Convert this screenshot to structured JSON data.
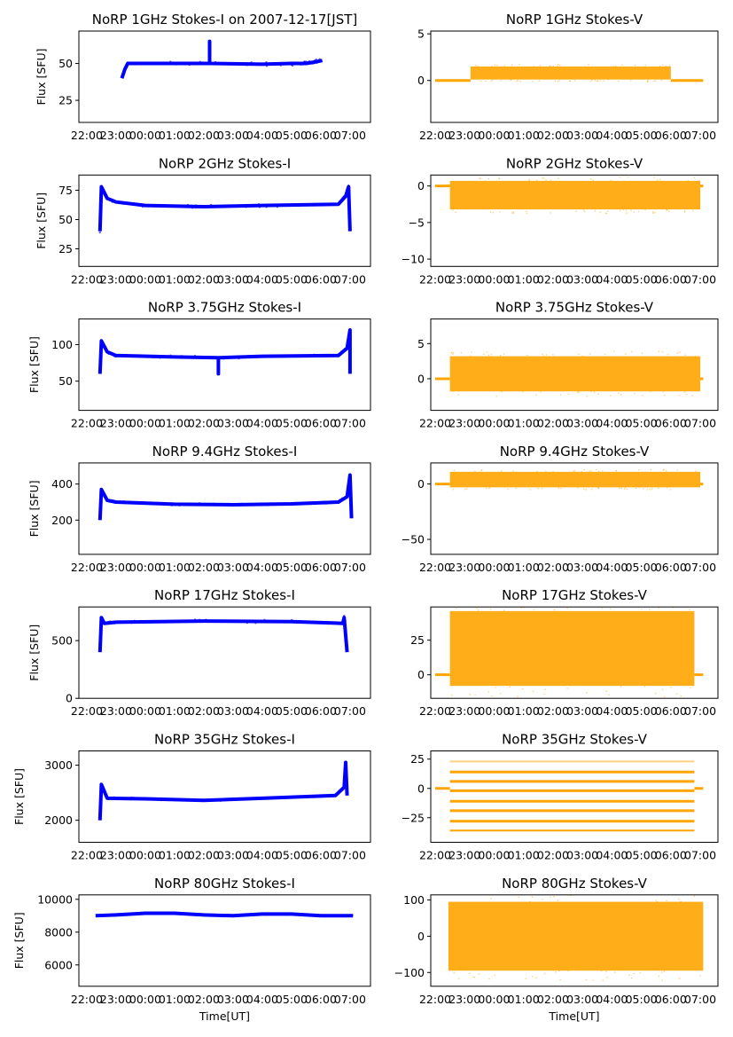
{
  "chart_data": {
    "type": "scatter",
    "x_unit": "hours since 22:00 UT",
    "xtick_values": [
      0,
      1,
      2,
      3,
      4,
      5,
      6,
      7,
      8,
      9
    ],
    "xtick_labels": [
      "22:00",
      "23:00",
      "00:00",
      "01:00",
      "02:00",
      "03:00",
      "04:00",
      "05:00",
      "06:00",
      "07:00"
    ],
    "xlabel": "Time[UT]",
    "colors": {
      "stokes_i": "#0000ff",
      "stokes_v": "#ffa500"
    },
    "panels": [
      {
        "title": "NoRP 1GHz Stokes-I on 2007-12-17[JST]",
        "ylabel": "Flux [SFU]",
        "ylim": [
          10,
          72
        ],
        "yticks": [
          25,
          50
        ],
        "ytick_labels": [
          "25",
          "50"
        ],
        "xlim": [
          -0.27,
          9.7
        ],
        "kind": "I",
        "points": [
          [
            1.2,
            40
          ],
          [
            1.3,
            46
          ],
          [
            1.4,
            50
          ],
          [
            3,
            50
          ],
          [
            4.2,
            50
          ],
          [
            4.2,
            65
          ],
          [
            4.2,
            50
          ],
          [
            6,
            49.5
          ],
          [
            7,
            50
          ],
          [
            7.5,
            50
          ],
          [
            7.8,
            51
          ],
          [
            8.05,
            52
          ]
        ],
        "band": 3
      },
      {
        "title": "NoRP 1GHz Stokes-V",
        "ylim": [
          -4.5,
          5.3
        ],
        "yticks": [
          0,
          5
        ],
        "ytick_labels": [
          "0",
          "5"
        ],
        "xlim": [
          -0.15,
          9.6
        ],
        "kind": "V",
        "zero": [
          [
            0,
            1.2
          ],
          [
            8.0,
            9.1
          ]
        ],
        "band": [
          1.2,
          8.0,
          0.1,
          1.5
        ]
      },
      {
        "title": "NoRP 2GHz Stokes-I",
        "ylabel": "Flux [SFU]",
        "ylim": [
          10,
          88
        ],
        "yticks": [
          25,
          50,
          75
        ],
        "ytick_labels": [
          "25",
          "50",
          "75"
        ],
        "xlim": [
          -0.27,
          9.7
        ],
        "kind": "I",
        "points": [
          [
            0.45,
            40
          ],
          [
            0.5,
            78
          ],
          [
            0.7,
            68
          ],
          [
            1,
            65
          ],
          [
            2,
            62
          ],
          [
            4,
            61
          ],
          [
            6,
            62
          ],
          [
            8.6,
            63
          ],
          [
            8.85,
            70
          ],
          [
            8.95,
            78
          ],
          [
            9.0,
            40
          ]
        ],
        "band": 3
      },
      {
        "title": "NoRP 2GHz Stokes-V",
        "ylim": [
          -11,
          1.5
        ],
        "yticks": [
          -10,
          -5,
          0
        ],
        "ytick_labels": [
          "−10",
          "−5",
          "0"
        ],
        "xlim": [
          -0.15,
          9.6
        ],
        "kind": "V",
        "zero": [
          [
            0,
            0.5
          ],
          [
            9.0,
            9.1
          ]
        ],
        "band": [
          0.5,
          9.0,
          -3.2,
          0.7
        ]
      },
      {
        "title": "NoRP 3.75GHz Stokes-I",
        "ylabel": "Flux [SFU]",
        "ylim": [
          10,
          135
        ],
        "yticks": [
          50,
          100
        ],
        "ytick_labels": [
          "50",
          "100"
        ],
        "xlim": [
          -0.27,
          9.7
        ],
        "kind": "I",
        "points": [
          [
            0.45,
            60
          ],
          [
            0.5,
            105
          ],
          [
            0.7,
            90
          ],
          [
            1,
            85
          ],
          [
            3,
            83
          ],
          [
            4.5,
            82
          ],
          [
            4.5,
            60
          ],
          [
            4.5,
            82
          ],
          [
            6,
            84
          ],
          [
            8.6,
            85
          ],
          [
            8.9,
            95
          ],
          [
            9.0,
            120
          ],
          [
            9.0,
            60
          ]
        ],
        "band": 4
      },
      {
        "title": "NoRP 3.75GHz Stokes-V",
        "ylim": [
          -4.5,
          8.5
        ],
        "yticks": [
          0,
          5
        ],
        "ytick_labels": [
          "0",
          "5"
        ],
        "xlim": [
          -0.15,
          9.6
        ],
        "kind": "V",
        "zero": [
          [
            0,
            0.5
          ],
          [
            9.0,
            9.1
          ]
        ],
        "band": [
          0.5,
          9.0,
          -1.8,
          3.2
        ]
      },
      {
        "title": "NoRP 9.4GHz Stokes-I",
        "ylabel": "Flux [SFU]",
        "ylim": [
          10,
          517
        ],
        "yticks": [
          200,
          400
        ],
        "ytick_labels": [
          "200",
          "400"
        ],
        "xlim": [
          -0.27,
          9.7
        ],
        "kind": "I",
        "points": [
          [
            0.45,
            200
          ],
          [
            0.5,
            370
          ],
          [
            0.7,
            310
          ],
          [
            1,
            300
          ],
          [
            3,
            288
          ],
          [
            5,
            285
          ],
          [
            7,
            290
          ],
          [
            8.6,
            300
          ],
          [
            8.9,
            330
          ],
          [
            9.0,
            450
          ],
          [
            9.05,
            210
          ]
        ],
        "band": 15
      },
      {
        "title": "NoRP 9.4GHz Stokes-V",
        "ylim": [
          -63.5,
          19
        ],
        "yticks": [
          -50,
          0
        ],
        "ytick_labels": [
          "−50",
          "0"
        ],
        "xlim": [
          -0.15,
          9.6
        ],
        "kind": "V",
        "zero": [
          [
            0,
            0.5
          ],
          [
            9.0,
            9.1
          ]
        ],
        "band": [
          0.5,
          9.0,
          -3,
          11
        ]
      },
      {
        "title": "NoRP 17GHz Stokes-I",
        "ylabel": "Flux [SFU]",
        "ylim": [
          0,
          792
        ],
        "yticks": [
          0,
          500
        ],
        "ytick_labels": [
          "0",
          "500"
        ],
        "xlim": [
          -0.27,
          9.7
        ],
        "kind": "I",
        "points": [
          [
            0.45,
            400
          ],
          [
            0.5,
            700
          ],
          [
            0.6,
            650
          ],
          [
            1,
            660
          ],
          [
            4,
            670
          ],
          [
            7,
            665
          ],
          [
            8.75,
            650
          ],
          [
            8.8,
            700
          ],
          [
            8.9,
            400
          ]
        ],
        "band": 30
      },
      {
        "title": "NoRP 17GHz Stokes-V",
        "ylim": [
          -17,
          49
        ],
        "yticks": [
          0,
          25
        ],
        "ytick_labels": [
          "0",
          "25"
        ],
        "xlim": [
          -0.15,
          9.6
        ],
        "kind": "V",
        "zero": [
          [
            0,
            0.5
          ],
          [
            8.8,
            9.1
          ]
        ],
        "band": [
          0.5,
          8.8,
          -8,
          46
        ]
      },
      {
        "title": "NoRP 35GHz Stokes-I",
        "ylabel": "Flux [SFU]",
        "ylim": [
          1600,
          3260
        ],
        "yticks": [
          2000,
          3000
        ],
        "ytick_labels": [
          "2000",
          "3000"
        ],
        "xlim": [
          -0.27,
          9.7
        ],
        "kind": "I",
        "points": [
          [
            0.45,
            2000
          ],
          [
            0.5,
            2650
          ],
          [
            0.7,
            2400
          ],
          [
            2,
            2390
          ],
          [
            4,
            2360
          ],
          [
            6,
            2400
          ],
          [
            8.5,
            2450
          ],
          [
            8.8,
            2600
          ],
          [
            8.85,
            3050
          ],
          [
            8.9,
            2450
          ]
        ],
        "band": 40
      },
      {
        "title": "NoRP 35GHz Stokes-V",
        "ylim": [
          -46,
          32
        ],
        "yticks": [
          -25,
          0,
          25
        ],
        "ytick_labels": [
          "−25",
          "0",
          "25"
        ],
        "xlim": [
          -0.15,
          9.6
        ],
        "kind": "V",
        "zero": [
          [
            0,
            0.5
          ],
          [
            8.8,
            9.1
          ]
        ],
        "levels": [
          23,
          14,
          6,
          -2,
          -11,
          -19,
          -28,
          -36
        ],
        "levels_range": [
          0.5,
          8.8
        ]
      },
      {
        "title": "NoRP 80GHz Stokes-I",
        "ylabel": "Flux [SFU]",
        "ylim": [
          4700,
          10270
        ],
        "yticks": [
          6000,
          8000,
          10000
        ],
        "ytick_labels": [
          "6000",
          "8000",
          "10000"
        ],
        "xlim": [
          -0.27,
          9.7
        ],
        "kind": "I",
        "points": [
          [
            0.3,
            9000
          ],
          [
            1,
            9050
          ],
          [
            2,
            9150
          ],
          [
            3,
            9150
          ],
          [
            4,
            9050
          ],
          [
            5,
            9000
          ],
          [
            6,
            9100
          ],
          [
            7,
            9100
          ],
          [
            8,
            9000
          ],
          [
            9.1,
            9000
          ]
        ],
        "band": 80
      },
      {
        "title": "NoRP 80GHz Stokes-V",
        "ylim": [
          -138,
          114
        ],
        "yticks": [
          -100,
          0,
          100
        ],
        "ytick_labels": [
          "−100",
          "0",
          "100"
        ],
        "xlim": [
          -0.15,
          9.6
        ],
        "kind": "V",
        "zero": [],
        "band": [
          0.45,
          9.1,
          -95,
          95
        ]
      }
    ]
  }
}
